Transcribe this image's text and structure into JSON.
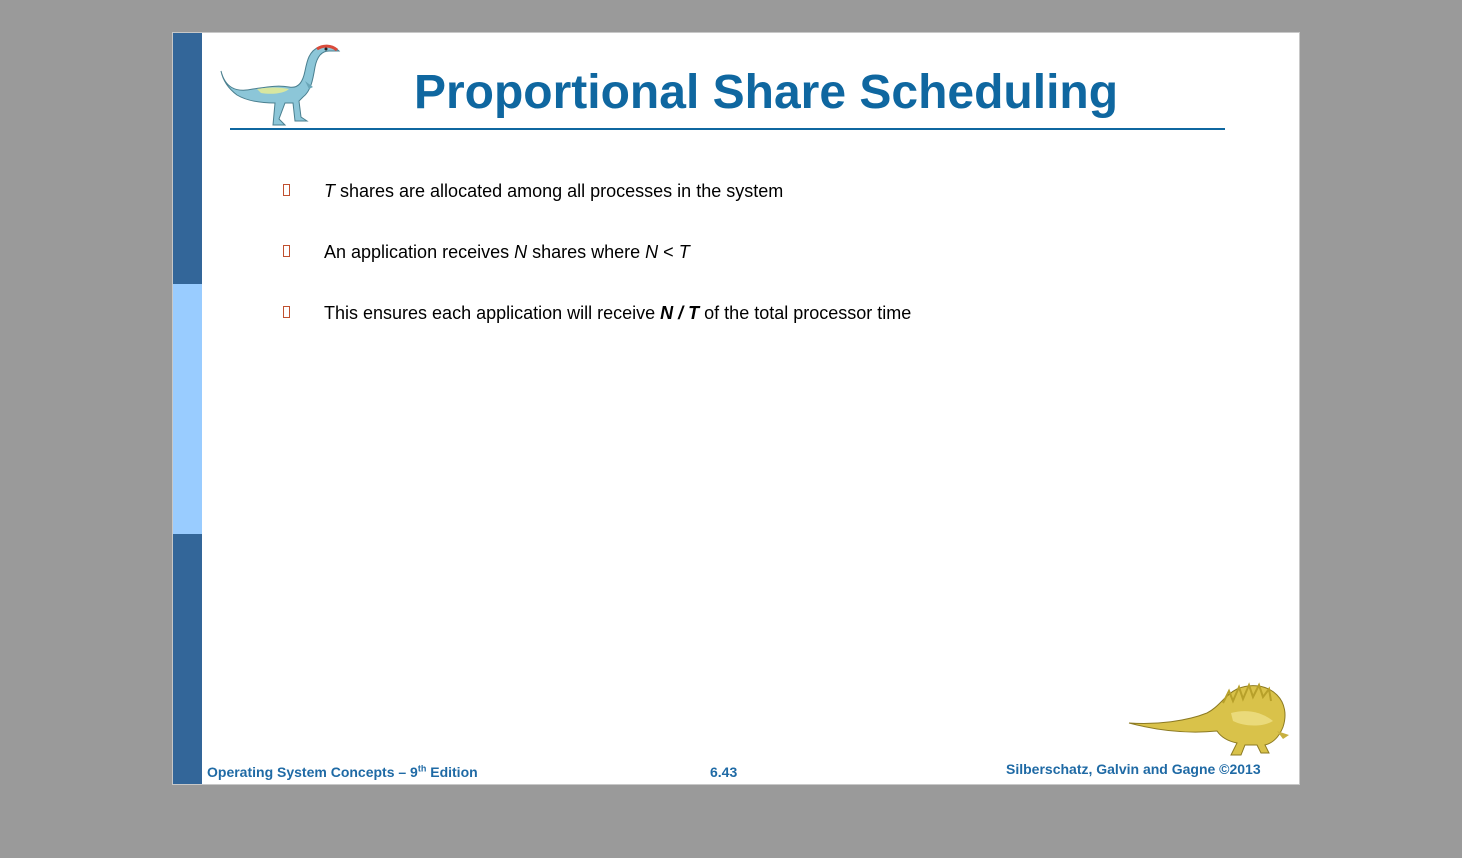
{
  "colors": {
    "background": "#9a9a9a",
    "slide": "#ffffff",
    "sidebar_dark": "#336699",
    "sidebar_light": "#99ccff",
    "title": "#0f67a0",
    "footer": "#1f6aa5",
    "bullet_marker": "#c0502f"
  },
  "slide": {
    "title": "Proportional Share Scheduling",
    "top_image_icon": "dinosaur-icon",
    "bottom_image_icon": "dinosaur-icon",
    "bullets": [
      {
        "marker": "square-bullet-icon",
        "lead_italic": "T",
        "rest": " shares are allocated among all processes in the system"
      },
      {
        "marker": "square-bullet-icon",
        "lead": "An application receives ",
        "n": "N",
        "mid": " shares where ",
        "cond_n": "N",
        "lt": " < ",
        "cond_t": "T"
      },
      {
        "marker": "square-bullet-icon",
        "lead": "This ensures each application will receive ",
        "ratio": "N / T",
        "rest": " of the total processor time"
      }
    ],
    "footer": {
      "left_prefix": "Operating System Concepts – 9",
      "left_sup": "th",
      "left_suffix": " Edition",
      "center": "6.43",
      "right": "Silberschatz, Galvin and Gagne ©2013"
    }
  }
}
